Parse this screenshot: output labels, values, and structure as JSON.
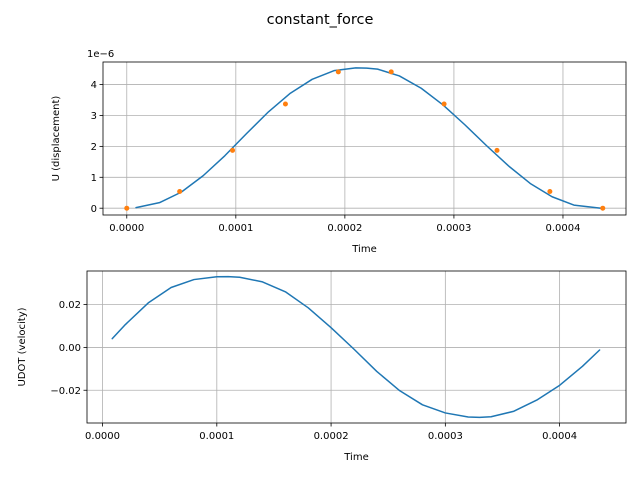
{
  "figure": {
    "suptitle": "constant_force"
  },
  "colors": {
    "line": "#1f77b4",
    "marker": "#ff7f0e",
    "grid": "#b0b0b0",
    "axes": "#000000"
  },
  "chart_data": [
    {
      "type": "line",
      "title": "",
      "xlabel": "Time",
      "ylabel": "U (displacement)",
      "offset_text": "1e−6",
      "xlim": [
        -2.18e-05,
        0.0004578
      ],
      "ylim": [
        -0.22,
        4.73
      ],
      "xticks": [
        0.0,
        0.0001,
        0.0002,
        0.0003,
        0.0004
      ],
      "xtick_labels": [
        "0.0000",
        "0.0001",
        "0.0002",
        "0.0003",
        "0.0004"
      ],
      "yticks": [
        0,
        1,
        2,
        3,
        4
      ],
      "ytick_labels": [
        "0",
        "1",
        "2",
        "3",
        "4"
      ],
      "grid": true,
      "series": [
        {
          "style": "line",
          "x": [
            8.5e-06,
            3e-05,
            5e-05,
            7e-05,
            9e-05,
            0.00011,
            0.00013,
            0.00015,
            0.00017,
            0.00019,
            0.00021,
            0.00022,
            0.00023,
            0.00025,
            0.00027,
            0.00029,
            0.00031,
            0.00033,
            0.00035,
            0.00037,
            0.00039,
            0.00041,
            0.000435
          ],
          "y": [
            0.02,
            0.18,
            0.52,
            1.05,
            1.7,
            2.42,
            3.12,
            3.72,
            4.17,
            4.45,
            4.54,
            4.53,
            4.5,
            4.28,
            3.88,
            3.34,
            2.7,
            2.02,
            1.37,
            0.8,
            0.37,
            0.1,
            0.0
          ]
        },
        {
          "style": "markers",
          "x": [
            0.0,
            4.85e-05,
            9.7e-05,
            0.0001455,
            0.000194,
            0.0002425,
            0.000291,
            0.0003395,
            0.000388,
            0.0004365
          ],
          "y": [
            0.0,
            0.54,
            1.87,
            3.37,
            4.41,
            4.41,
            3.37,
            1.87,
            0.54,
            0.0
          ]
        }
      ]
    },
    {
      "type": "line",
      "title": "",
      "xlabel": "Time",
      "ylabel": "UDOT (velocity)",
      "offset_text": "",
      "xlim": [
        -1.36e-05,
        0.0004581
      ],
      "ylim": [
        -0.0353,
        0.0357
      ],
      "xticks": [
        0.0,
        0.0001,
        0.0002,
        0.0003,
        0.0004
      ],
      "xtick_labels": [
        "0.0000",
        "0.0001",
        "0.0002",
        "0.0003",
        "0.0004"
      ],
      "yticks": [
        -0.02,
        0.0,
        0.02
      ],
      "ytick_labels": [
        "−0.02",
        "0.00",
        "0.02"
      ],
      "grid": true,
      "series": [
        {
          "style": "line",
          "x": [
            8.5e-06,
            2e-05,
            4e-05,
            6e-05,
            8e-05,
            0.0001,
            0.00011,
            0.00012,
            0.00014,
            0.00016,
            0.00018,
            0.0002,
            0.00022,
            0.00024,
            0.00026,
            0.00028,
            0.0003,
            0.00032,
            0.00033,
            0.00034,
            0.00036,
            0.00038,
            0.0004,
            0.00042,
            0.000435
          ],
          "y": [
            0.0041,
            0.0107,
            0.0208,
            0.028,
            0.0317,
            0.033,
            0.0331,
            0.0328,
            0.0306,
            0.026,
            0.0185,
            0.0092,
            -0.0008,
            -0.0112,
            -0.0202,
            -0.0268,
            -0.0306,
            -0.0325,
            -0.0327,
            -0.0324,
            -0.0298,
            -0.0246,
            -0.0177,
            -0.0088,
            -0.0012
          ]
        }
      ]
    }
  ]
}
